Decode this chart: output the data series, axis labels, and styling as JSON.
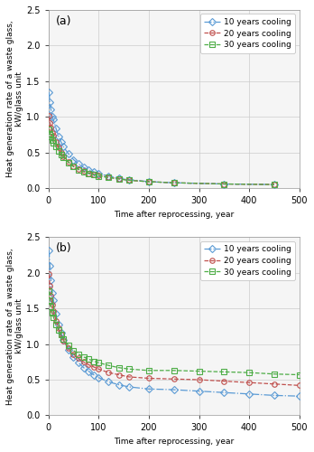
{
  "panel_a": {
    "label": "(a)",
    "ylim": [
      0,
      2.5
    ],
    "yticks": [
      0.0,
      0.5,
      1.0,
      1.5,
      2.0,
      2.5
    ],
    "series": [
      {
        "label": "10 years cooling",
        "color": "#5b9bd5",
        "marker": "D",
        "linestyle": "-.",
        "x": [
          1,
          3,
          5,
          8,
          10,
          15,
          20,
          25,
          30,
          40,
          50,
          60,
          70,
          80,
          90,
          100,
          120,
          140,
          160,
          200,
          250,
          350,
          450
        ],
        "y": [
          1.35,
          1.2,
          1.1,
          1.0,
          0.96,
          0.84,
          0.73,
          0.65,
          0.58,
          0.48,
          0.4,
          0.34,
          0.29,
          0.26,
          0.23,
          0.2,
          0.17,
          0.14,
          0.12,
          0.09,
          0.075,
          0.058,
          0.05
        ]
      },
      {
        "label": "20 years cooling",
        "color": "#c0504d",
        "marker": "o",
        "linestyle": "--",
        "x": [
          1,
          3,
          5,
          8,
          10,
          15,
          20,
          25,
          30,
          40,
          50,
          60,
          70,
          80,
          90,
          100,
          120,
          140,
          160,
          200,
          250,
          350,
          450
        ],
        "y": [
          1.01,
          0.92,
          0.85,
          0.78,
          0.74,
          0.65,
          0.57,
          0.5,
          0.45,
          0.37,
          0.31,
          0.27,
          0.24,
          0.21,
          0.19,
          0.18,
          0.15,
          0.13,
          0.11,
          0.09,
          0.075,
          0.058,
          0.05
        ]
      },
      {
        "label": "30 years cooling",
        "color": "#4ead47",
        "marker": "s",
        "linestyle": "--",
        "x": [
          1,
          3,
          5,
          8,
          10,
          15,
          20,
          25,
          30,
          40,
          50,
          60,
          70,
          80,
          90,
          100,
          120,
          140,
          160,
          200,
          250,
          350,
          450
        ],
        "y": [
          0.82,
          0.76,
          0.72,
          0.67,
          0.64,
          0.58,
          0.52,
          0.47,
          0.43,
          0.36,
          0.3,
          0.26,
          0.23,
          0.21,
          0.19,
          0.17,
          0.15,
          0.13,
          0.11,
          0.09,
          0.075,
          0.058,
          0.05
        ]
      }
    ]
  },
  "panel_b": {
    "label": "(b)",
    "ylim": [
      0,
      2.5
    ],
    "yticks": [
      0.0,
      0.5,
      1.0,
      1.5,
      2.0,
      2.5
    ],
    "series": [
      {
        "label": "10 years cooling",
        "color": "#5b9bd5",
        "marker": "D",
        "linestyle": "-.",
        "x": [
          1,
          3,
          5,
          8,
          10,
          15,
          20,
          25,
          30,
          40,
          50,
          60,
          70,
          80,
          90,
          100,
          120,
          140,
          160,
          200,
          250,
          300,
          350,
          400,
          450,
          500
        ],
        "y": [
          2.32,
          2.1,
          1.9,
          1.72,
          1.62,
          1.42,
          1.28,
          1.16,
          1.06,
          0.92,
          0.82,
          0.74,
          0.67,
          0.62,
          0.57,
          0.53,
          0.47,
          0.43,
          0.4,
          0.37,
          0.36,
          0.34,
          0.32,
          0.3,
          0.28,
          0.27
        ]
      },
      {
        "label": "20 years cooling",
        "color": "#c0504d",
        "marker": "o",
        "linestyle": "--",
        "x": [
          1,
          3,
          5,
          8,
          10,
          15,
          20,
          25,
          30,
          40,
          50,
          60,
          70,
          80,
          90,
          100,
          120,
          140,
          160,
          200,
          250,
          300,
          350,
          400,
          450,
          500
        ],
        "y": [
          1.98,
          1.82,
          1.68,
          1.55,
          1.47,
          1.33,
          1.22,
          1.13,
          1.05,
          0.94,
          0.86,
          0.8,
          0.75,
          0.71,
          0.68,
          0.65,
          0.6,
          0.57,
          0.54,
          0.52,
          0.51,
          0.5,
          0.48,
          0.46,
          0.44,
          0.42
        ]
      },
      {
        "label": "30 years cooling",
        "color": "#4ead47",
        "marker": "s",
        "linestyle": "--",
        "x": [
          1,
          3,
          5,
          8,
          10,
          15,
          20,
          25,
          30,
          40,
          50,
          60,
          70,
          80,
          90,
          100,
          120,
          140,
          160,
          200,
          250,
          300,
          350,
          400,
          450,
          500
        ],
        "y": [
          1.74,
          1.62,
          1.53,
          1.44,
          1.38,
          1.28,
          1.2,
          1.13,
          1.07,
          0.98,
          0.91,
          0.86,
          0.82,
          0.79,
          0.76,
          0.74,
          0.7,
          0.67,
          0.65,
          0.63,
          0.63,
          0.62,
          0.61,
          0.6,
          0.58,
          0.57
        ]
      }
    ]
  },
  "xlabel": "Time after reprocessing, year",
  "ylabel": "Heat generation rate of a waste glass, kW/glass unit",
  "xlim": [
    0,
    500
  ],
  "xticks": [
    0,
    100,
    200,
    300,
    400,
    500
  ],
  "marker_size": 4,
  "linewidth": 0.9,
  "legend_fontsize": 6.5,
  "axis_fontsize": 6.5,
  "tick_fontsize": 7,
  "label_fontsize": 9,
  "grid_color": "#cccccc",
  "bg_color": "#f5f5f5"
}
